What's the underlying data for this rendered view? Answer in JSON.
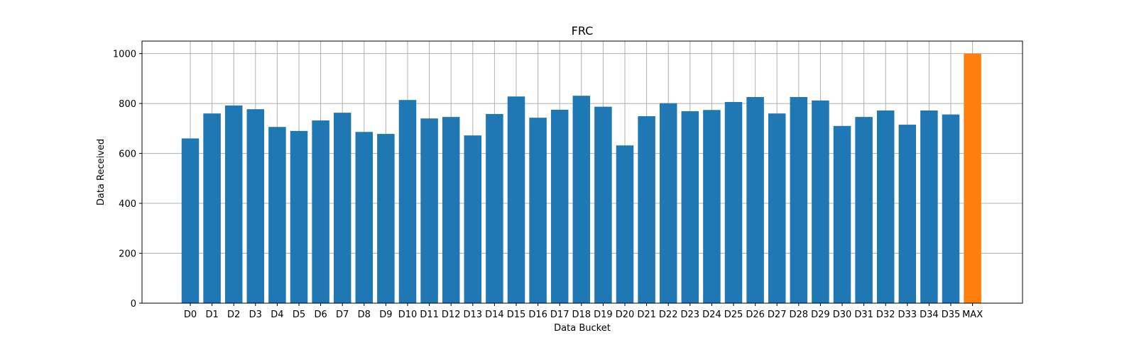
{
  "chart_data": {
    "type": "bar",
    "title": "FRC",
    "xlabel": "Data Bucket",
    "ylabel": "Data Received",
    "ylim": [
      0,
      1050
    ],
    "yticks": [
      0,
      200,
      400,
      600,
      800,
      1000
    ],
    "grid": true,
    "categories": [
      "D0",
      "D1",
      "D2",
      "D3",
      "D4",
      "D5",
      "D6",
      "D7",
      "D8",
      "D9",
      "D10",
      "D11",
      "D12",
      "D13",
      "D14",
      "D15",
      "D16",
      "D17",
      "D18",
      "D19",
      "D20",
      "D21",
      "D22",
      "D23",
      "D24",
      "D25",
      "D26",
      "D27",
      "D28",
      "D29",
      "D30",
      "D31",
      "D32",
      "D33",
      "D34",
      "D35",
      "MAX"
    ],
    "values": [
      660,
      760,
      792,
      777,
      706,
      690,
      732,
      763,
      686,
      678,
      814,
      740,
      746,
      672,
      758,
      828,
      743,
      775,
      831,
      787,
      632,
      749,
      801,
      769,
      774,
      806,
      826,
      760,
      826,
      812,
      710,
      746,
      772,
      715,
      772,
      756,
      1000
    ],
    "bar_colors": [
      "#1f77b4",
      "#1f77b4",
      "#1f77b4",
      "#1f77b4",
      "#1f77b4",
      "#1f77b4",
      "#1f77b4",
      "#1f77b4",
      "#1f77b4",
      "#1f77b4",
      "#1f77b4",
      "#1f77b4",
      "#1f77b4",
      "#1f77b4",
      "#1f77b4",
      "#1f77b4",
      "#1f77b4",
      "#1f77b4",
      "#1f77b4",
      "#1f77b4",
      "#1f77b4",
      "#1f77b4",
      "#1f77b4",
      "#1f77b4",
      "#1f77b4",
      "#1f77b4",
      "#1f77b4",
      "#1f77b4",
      "#1f77b4",
      "#1f77b4",
      "#1f77b4",
      "#1f77b4",
      "#1f77b4",
      "#1f77b4",
      "#1f77b4",
      "#1f77b4",
      "#ff7f0e"
    ]
  }
}
